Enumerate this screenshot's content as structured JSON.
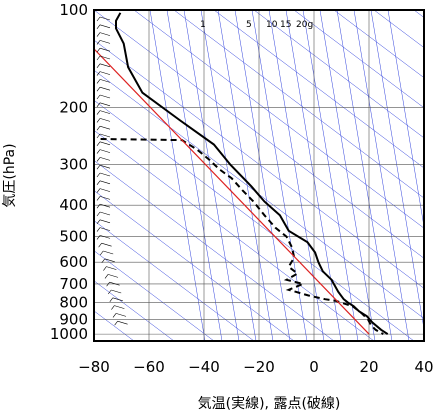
{
  "chart_data": {
    "type": "line",
    "title": "",
    "xlabel": "気温(実線), 露点(破線)",
    "ylabel": "気圧(hPa)",
    "x_unit": "°C",
    "y_unit": "hPa",
    "xlim": [
      -80,
      40
    ],
    "ylim": [
      1050,
      100
    ],
    "y_scale": "log",
    "x_ticks": [
      -80,
      -60,
      -40,
      -20,
      0,
      20,
      40
    ],
    "y_ticks": [
      100,
      200,
      300,
      400,
      500,
      600,
      700,
      800,
      900,
      1000
    ],
    "x_tick_labels": [
      "−80",
      "−60",
      "−40",
      "−20",
      "0",
      "20",
      "40"
    ],
    "y_tick_labels": [
      "100",
      "200",
      "300",
      "400",
      "500",
      "600",
      "700",
      "800",
      "900",
      "1000"
    ],
    "grid": true,
    "mixing_ratio_labels": [
      {
        "text": "1",
        "value": 1
      },
      {
        "text": "5",
        "value": 5
      },
      {
        "text": "10",
        "value": 10
      },
      {
        "text": "15",
        "value": 15
      },
      {
        "text": "20g",
        "value": 20
      }
    ],
    "series": [
      {
        "style": "solid",
        "color": "#000000",
        "points": [
          [
            -70.4,
            102
          ],
          [
            -72,
            108
          ],
          [
            -72,
            114
          ],
          [
            -69.2,
            127
          ],
          [
            -67.6,
            150
          ],
          [
            -62.4,
            180
          ],
          [
            -48.4,
            220
          ],
          [
            -36.4,
            260
          ],
          [
            -30.4,
            300
          ],
          [
            -22.8,
            350
          ],
          [
            -18,
            390
          ],
          [
            -12.4,
            430
          ],
          [
            -9.2,
            480
          ],
          [
            -2.4,
            520
          ],
          [
            0.4,
            560
          ],
          [
            1.6,
            600
          ],
          [
            3.2,
            640
          ],
          [
            6.4,
            680
          ],
          [
            7.2,
            700
          ],
          [
            8.8,
            740
          ],
          [
            10.8,
            780
          ],
          [
            12.4,
            800
          ],
          [
            14.4,
            820
          ],
          [
            16.4,
            850
          ],
          [
            19.2,
            880
          ],
          [
            21.2,
            920
          ],
          [
            24.4,
            970
          ],
          [
            26.8,
            1000
          ]
        ]
      },
      {
        "style": "dashed",
        "color": "#000000",
        "points": [
          [
            -77.6,
            250
          ],
          [
            -48,
            252
          ],
          [
            -42.4,
            270
          ],
          [
            -38,
            290
          ],
          [
            -34.4,
            310
          ],
          [
            -30,
            330
          ],
          [
            -26,
            360
          ],
          [
            -22,
            390
          ],
          [
            -18,
            430
          ],
          [
            -14,
            470
          ],
          [
            -10,
            500
          ],
          [
            -8,
            540
          ],
          [
            -7.2,
            580
          ],
          [
            -9.2,
            620
          ],
          [
            -6,
            650
          ],
          [
            -10,
            680
          ],
          [
            -4,
            700
          ],
          [
            -9.2,
            730
          ],
          [
            -2,
            760
          ],
          [
            4,
            780
          ],
          [
            8,
            790
          ],
          [
            14,
            820
          ],
          [
            17.2,
            860
          ],
          [
            19.6,
            900
          ],
          [
            20.8,
            940
          ],
          [
            22.4,
            970
          ],
          [
            25.2,
            1000
          ]
        ]
      },
      {
        "style": "solid",
        "color": "#dd2222",
        "points": [
          [
            -80,
            131.8
          ],
          [
            20,
            1000
          ]
        ]
      }
    ]
  }
}
